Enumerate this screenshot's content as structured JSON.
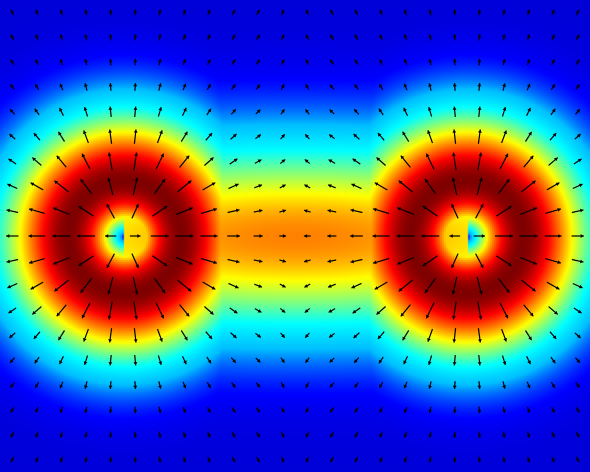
{
  "chart_data": {
    "type": "heatmap",
    "subtype": "vector-field-over-scalar-magnitude",
    "title": "",
    "xlabel": "",
    "ylabel": "",
    "axes_visible": false,
    "colormap": "jet",
    "colormap_stops": [
      "#00008f",
      "#0000ff",
      "#00bfff",
      "#00ffff",
      "#7fff7f",
      "#ffff00",
      "#ff7f00",
      "#ff0000",
      "#7f0000"
    ],
    "domain": {
      "xlim": [
        -1.0,
        1.0
      ],
      "ylim": [
        -0.8,
        0.8
      ]
    },
    "sources": [
      {
        "x": -0.58,
        "y": 0.0,
        "sign": 1
      },
      {
        "x": 0.58,
        "y": 0.0,
        "sign": 1
      }
    ],
    "ring_radius": 0.27,
    "arrow_grid": {
      "cols": 24,
      "rows": 19
    },
    "arrow_color": "#000000"
  }
}
